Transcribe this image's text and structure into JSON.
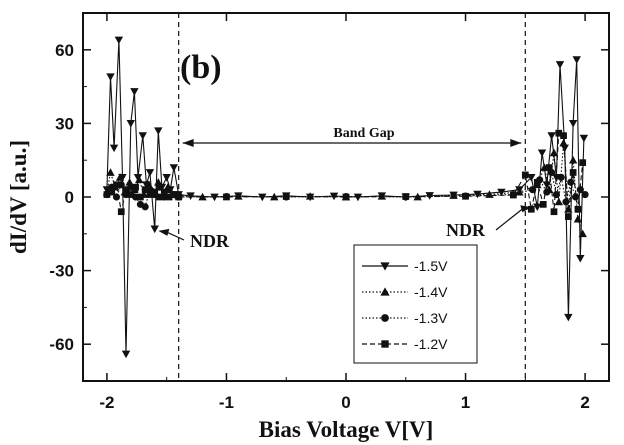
{
  "chart_data": {
    "type": "line",
    "panel_label": "(b)",
    "xlabel": "Bias Voltage V[V]",
    "ylabel": "dI/dV [a.u.]",
    "xlim": [
      -2.2,
      2.2
    ],
    "ylim": [
      -75,
      75
    ],
    "x_ticks": [
      -2,
      -1,
      0,
      1,
      2
    ],
    "y_ticks": [
      -60,
      -30,
      0,
      30,
      60
    ],
    "grid": false,
    "legend_position": "bottom-right",
    "annotations": {
      "band_gap_label": "Band Gap",
      "band_gap_range": [
        -1.4,
        1.5
      ],
      "band_gap_lines": [
        -1.4,
        1.5
      ],
      "ndr_left_label": "NDR",
      "ndr_left_target": [
        -1.62,
        -13
      ],
      "ndr_right_label": "NDR",
      "ndr_right_target": [
        1.5,
        -5
      ]
    },
    "series": [
      {
        "name": "-1.5V",
        "marker": "triangle-down",
        "dash": "solid",
        "values": [
          [
            -2.0,
            3
          ],
          [
            -1.97,
            49
          ],
          [
            -1.94,
            20
          ],
          [
            -1.9,
            64
          ],
          [
            -1.87,
            8
          ],
          [
            -1.84,
            -64
          ],
          [
            -1.8,
            30
          ],
          [
            -1.77,
            43
          ],
          [
            -1.74,
            8
          ],
          [
            -1.7,
            25
          ],
          [
            -1.67,
            5
          ],
          [
            -1.64,
            10
          ],
          [
            -1.6,
            -13
          ],
          [
            -1.57,
            27
          ],
          [
            -1.54,
            4
          ],
          [
            -1.5,
            8
          ],
          [
            -1.47,
            3
          ],
          [
            -1.44,
            12
          ],
          [
            -1.4,
            1
          ],
          [
            -1.3,
            0.5
          ],
          [
            -1.1,
            0
          ],
          [
            -0.9,
            0.5
          ],
          [
            -0.7,
            0
          ],
          [
            -0.5,
            0.5
          ],
          [
            -0.3,
            0
          ],
          [
            -0.1,
            0.4
          ],
          [
            0.1,
            0
          ],
          [
            0.3,
            0.5
          ],
          [
            0.5,
            0
          ],
          [
            0.7,
            0.6
          ],
          [
            0.9,
            0.8
          ],
          [
            1.1,
            1.2
          ],
          [
            1.3,
            2
          ],
          [
            1.45,
            3
          ],
          [
            1.55,
            8
          ],
          [
            1.6,
            -4
          ],
          [
            1.64,
            18
          ],
          [
            1.68,
            5
          ],
          [
            1.72,
            25
          ],
          [
            1.76,
            8
          ],
          [
            1.79,
            54
          ],
          [
            1.83,
            20
          ],
          [
            1.86,
            -49
          ],
          [
            1.9,
            30
          ],
          [
            1.93,
            56
          ],
          [
            1.96,
            -25
          ],
          [
            1.99,
            24
          ]
        ]
      },
      {
        "name": "-1.4V",
        "marker": "triangle-up",
        "dash": "dot",
        "values": [
          [
            -2.0,
            2
          ],
          [
            -1.97,
            10
          ],
          [
            -1.93,
            4
          ],
          [
            -1.89,
            8
          ],
          [
            -1.85,
            2
          ],
          [
            -1.81,
            6
          ],
          [
            -1.77,
            3
          ],
          [
            -1.73,
            7
          ],
          [
            -1.69,
            1
          ],
          [
            -1.65,
            5
          ],
          [
            -1.61,
            2
          ],
          [
            -1.57,
            6
          ],
          [
            -1.53,
            1
          ],
          [
            -1.49,
            4
          ],
          [
            -1.45,
            1
          ],
          [
            -1.4,
            0.5
          ],
          [
            -1.2,
            0
          ],
          [
            -0.9,
            0.3
          ],
          [
            -0.6,
            0
          ],
          [
            -0.3,
            0.3
          ],
          [
            0,
            0
          ],
          [
            0.3,
            0.3
          ],
          [
            0.6,
            0
          ],
          [
            0.9,
            0.6
          ],
          [
            1.2,
            1
          ],
          [
            1.45,
            2
          ],
          [
            1.6,
            5
          ],
          [
            1.66,
            12
          ],
          [
            1.7,
            3
          ],
          [
            1.74,
            18
          ],
          [
            1.78,
            -2
          ],
          [
            1.82,
            22
          ],
          [
            1.86,
            -5
          ],
          [
            1.9,
            15
          ],
          [
            1.94,
            -9
          ],
          [
            1.98,
            -15
          ]
        ]
      },
      {
        "name": "-1.3V",
        "marker": "circle",
        "dash": "dot",
        "values": [
          [
            -2.0,
            1
          ],
          [
            -1.96,
            4
          ],
          [
            -1.92,
            0
          ],
          [
            -1.88,
            5
          ],
          [
            -1.84,
            1
          ],
          [
            -1.8,
            4
          ],
          [
            -1.76,
            0
          ],
          [
            -1.72,
            -3
          ],
          [
            -1.68,
            -4
          ],
          [
            -1.64,
            3
          ],
          [
            -1.6,
            1
          ],
          [
            -1.56,
            4
          ],
          [
            -1.52,
            0
          ],
          [
            -1.48,
            3
          ],
          [
            -1.44,
            1
          ],
          [
            -1.4,
            0
          ],
          [
            -1.0,
            0.2
          ],
          [
            -0.5,
            0
          ],
          [
            0,
            0.2
          ],
          [
            0.5,
            0
          ],
          [
            1.0,
            0.4
          ],
          [
            1.4,
            1
          ],
          [
            1.56,
            3
          ],
          [
            1.62,
            7
          ],
          [
            1.68,
            2
          ],
          [
            1.72,
            10
          ],
          [
            1.76,
            1
          ],
          [
            1.8,
            8
          ],
          [
            1.84,
            -2
          ],
          [
            1.88,
            6
          ],
          [
            1.92,
            0
          ],
          [
            1.96,
            3
          ],
          [
            2.0,
            1
          ]
        ]
      },
      {
        "name": "-1.2V",
        "marker": "square",
        "dash": "dash",
        "values": [
          [
            -2.0,
            1
          ],
          [
            -1.96,
            2
          ],
          [
            -1.92,
            5
          ],
          [
            -1.88,
            -6
          ],
          [
            -1.84,
            3
          ],
          [
            -1.8,
            1
          ],
          [
            -1.76,
            4
          ],
          [
            -1.72,
            0
          ],
          [
            -1.68,
            3
          ],
          [
            -1.64,
            1
          ],
          [
            -1.6,
            2
          ],
          [
            -1.56,
            0
          ],
          [
            -1.52,
            2
          ],
          [
            -1.48,
            0
          ],
          [
            -1.44,
            1
          ],
          [
            -1.4,
            0
          ],
          [
            -1.0,
            0
          ],
          [
            -0.5,
            0.2
          ],
          [
            0,
            0
          ],
          [
            0.5,
            0.2
          ],
          [
            1.0,
            0.3
          ],
          [
            1.4,
            0.8
          ],
          [
            1.5,
            9
          ],
          [
            1.55,
            -5
          ],
          [
            1.6,
            6
          ],
          [
            1.65,
            -3
          ],
          [
            1.7,
            12
          ],
          [
            1.74,
            -6
          ],
          [
            1.78,
            26
          ],
          [
            1.82,
            25
          ],
          [
            1.86,
            -8
          ],
          [
            1.9,
            10
          ],
          [
            1.94,
            -5
          ],
          [
            1.98,
            14
          ]
        ]
      }
    ]
  }
}
